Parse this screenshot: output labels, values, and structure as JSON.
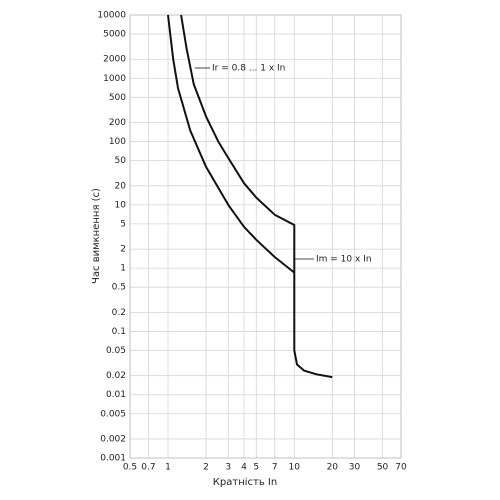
{
  "chart_data": {
    "type": "line",
    "x_label": "Кратність In",
    "y_label": "Час вимкнення (с)",
    "xlog": true,
    "ylog": true,
    "grid": true,
    "xlim": [
      0.5,
      70
    ],
    "xticks": [
      0.5,
      0.7,
      1,
      2,
      3,
      4,
      5,
      7,
      10,
      20,
      30,
      50,
      70
    ],
    "ylim": [
      0.001,
      10000
    ],
    "yticks": [
      0.001,
      0.002,
      0.005,
      0.01,
      0.02,
      0.05,
      0.1,
      0.2,
      0.5,
      1,
      2,
      5,
      10,
      20,
      50,
      100,
      200,
      500,
      1000,
      2000,
      5000,
      10000
    ],
    "series": [
      {
        "color": "#111111",
        "x": [
          1.27,
          1.4,
          1.6,
          2,
          2.5,
          3,
          4,
          5,
          7,
          10,
          10,
          10.5,
          12,
          15,
          20
        ],
        "values": [
          10000,
          3000,
          800,
          250,
          100,
          55,
          22,
          13,
          7,
          4.8,
          0.05,
          0.03,
          0.024,
          0.021,
          0.019
        ]
      },
      {
        "color": "#111111",
        "x": [
          1,
          1.1,
          1.2,
          1.5,
          2,
          3,
          4,
          5,
          7,
          10
        ],
        "values": [
          10000,
          2000,
          700,
          150,
          40,
          10,
          4.5,
          2.8,
          1.5,
          0.85
        ]
      }
    ],
    "annotations": [
      "Ir = 0.8 ... 1 x In",
      "Im = 10 x In"
    ]
  }
}
